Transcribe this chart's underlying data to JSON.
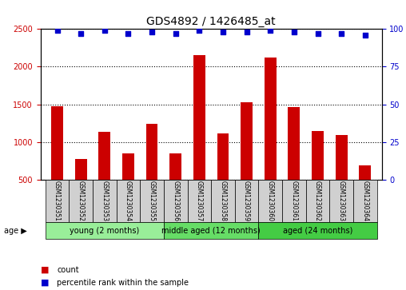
{
  "title": "GDS4892 / 1426485_at",
  "samples": [
    "GSM1230351",
    "GSM1230352",
    "GSM1230353",
    "GSM1230354",
    "GSM1230355",
    "GSM1230356",
    "GSM1230357",
    "GSM1230358",
    "GSM1230359",
    "GSM1230360",
    "GSM1230361",
    "GSM1230362",
    "GSM1230363",
    "GSM1230364"
  ],
  "counts": [
    1480,
    780,
    1140,
    850,
    1240,
    850,
    2150,
    1110,
    1530,
    2120,
    1470,
    1150,
    1090,
    690
  ],
  "percentile_ranks": [
    99,
    97,
    99,
    97,
    98,
    97,
    99,
    98,
    98,
    99,
    98,
    97,
    97,
    96
  ],
  "bar_color": "#cc0000",
  "dot_color": "#0000cc",
  "ylim_left": [
    500,
    2500
  ],
  "ylim_right": [
    0,
    100
  ],
  "yticks_left": [
    500,
    1000,
    1500,
    2000,
    2500
  ],
  "yticks_right": [
    0,
    25,
    50,
    75,
    100
  ],
  "groups": [
    {
      "label": "young (2 months)",
      "start": 0,
      "end": 5,
      "color": "#99ee99"
    },
    {
      "label": "middle aged (12 months)",
      "start": 5,
      "end": 9,
      "color": "#66dd66"
    },
    {
      "label": "aged (24 months)",
      "start": 9,
      "end": 14,
      "color": "#44cc44"
    }
  ],
  "age_label": "age",
  "legend_count_label": "count",
  "legend_pct_label": "percentile rank within the sample",
  "grid_color": "#000000",
  "bg_color": "#ffffff",
  "plot_bg_color": "#ffffff",
  "tick_label_color_left": "#cc0000",
  "tick_label_color_right": "#0000cc",
  "title_color": "#000000"
}
